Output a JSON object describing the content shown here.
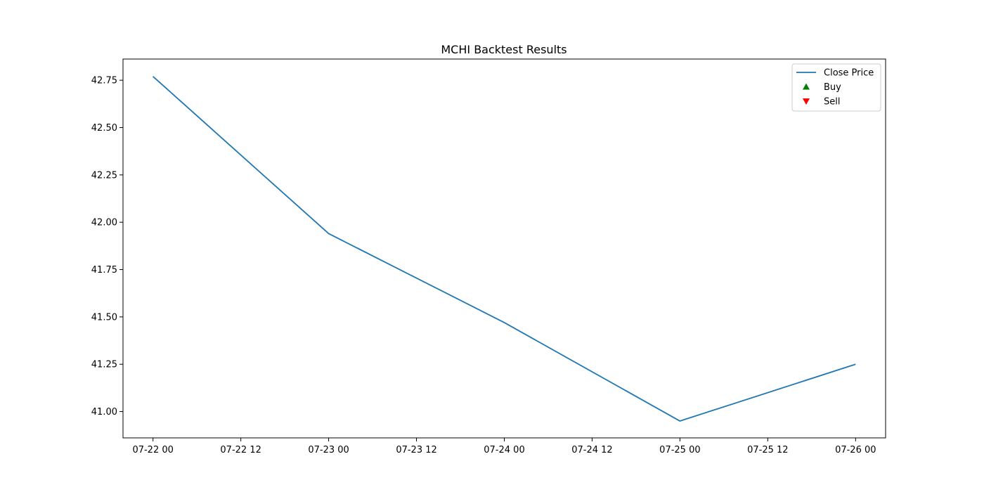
{
  "chart_data": {
    "type": "line",
    "title": "MCHI Backtest Results",
    "xlabel": "",
    "ylabel": "",
    "x_tick_labels": [
      "07-22 00",
      "07-22 12",
      "07-23 00",
      "07-23 12",
      "07-24 00",
      "07-24 12",
      "07-25 00",
      "07-25 12",
      "07-26 00"
    ],
    "y_tick_labels": [
      "41.00",
      "41.25",
      "41.50",
      "41.75",
      "42.00",
      "42.25",
      "42.50",
      "42.75"
    ],
    "xlim": [
      "2024-07-21T19:54",
      "2024-07-26T04:06"
    ],
    "ylim": [
      40.861,
      42.862
    ],
    "series": [
      {
        "name": "Close Price",
        "color": "#1f77b4",
        "x": [
          "2024-07-22T00:00",
          "2024-07-23T00:00",
          "2024-07-24T00:00",
          "2024-07-25T00:00",
          "2024-07-26T00:00"
        ],
        "y": [
          42.77,
          41.94,
          41.47,
          40.95,
          41.25
        ]
      },
      {
        "name": "Buy",
        "color": "#008000",
        "marker": "triangle-up",
        "x": [],
        "y": []
      },
      {
        "name": "Sell",
        "color": "#ff0000",
        "marker": "triangle-down",
        "x": [],
        "y": []
      }
    ],
    "legend": {
      "position": "top-right",
      "entries": [
        "Close Price",
        "Buy",
        "Sell"
      ]
    },
    "grid": false
  }
}
